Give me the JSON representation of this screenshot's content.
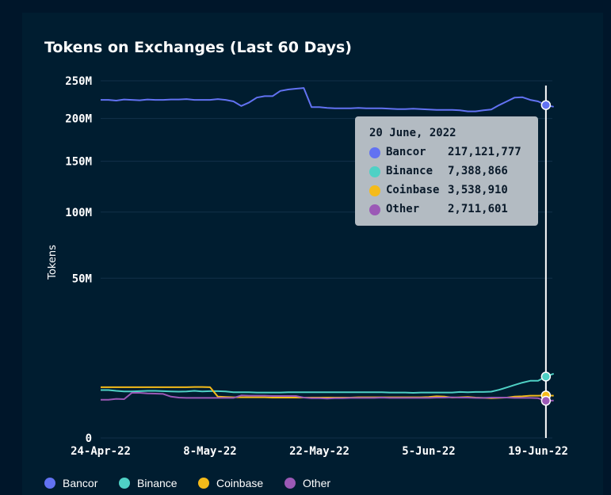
{
  "title": "Tokens on Exchanges (Last 60 Days)",
  "colors": {
    "Bancor": "#6272f2",
    "Binance": "#4fd1c5",
    "Coinbase": "#f4bb1a",
    "Other": "#9b59b6"
  },
  "tooltip": {
    "date": "20 June, 2022",
    "rows": [
      {
        "name": "Bancor",
        "value": "217,121,777"
      },
      {
        "name": "Binance",
        "value": "7,388,866"
      },
      {
        "name": "Coinbase",
        "value": "3,538,910"
      },
      {
        "name": "Other",
        "value": "2,711,601"
      }
    ]
  },
  "legend": [
    "Bancor",
    "Binance",
    "Coinbase",
    "Other"
  ],
  "chart_data": {
    "type": "line",
    "title": "Tokens on Exchanges (Last 60 Days)",
    "ylabel": "Tokens",
    "xlabel": "",
    "y_scale": "sqrt",
    "ylim": [
      0,
      250000000
    ],
    "y_ticks": [
      {
        "value": 0,
        "label": "0"
      },
      {
        "value": 50000000,
        "label": "50M"
      },
      {
        "value": 100000000,
        "label": "100M"
      },
      {
        "value": 150000000,
        "label": "150M"
      },
      {
        "value": 200000000,
        "label": "200M"
      },
      {
        "value": 250000000,
        "label": "250M"
      }
    ],
    "x_ticks": [
      {
        "date": "2022-04-24",
        "label": "24-Apr-22"
      },
      {
        "date": "2022-05-08",
        "label": "8-May-22"
      },
      {
        "date": "2022-05-22",
        "label": "22-May-22"
      },
      {
        "date": "2022-06-05",
        "label": "5-Jun-22"
      },
      {
        "date": "2022-06-19",
        "label": "19-Jun-22"
      }
    ],
    "x_range": [
      "2022-04-24",
      "2022-06-20"
    ],
    "highlight_date": "2022-06-20",
    "grid": true,
    "legend_position": "bottom",
    "series": [
      {
        "name": "Bancor",
        "points": [
          [
            "2022-04-24",
            224000000
          ],
          [
            "2022-04-25",
            224000000
          ],
          [
            "2022-04-26",
            223000000
          ],
          [
            "2022-04-27",
            224500000
          ],
          [
            "2022-04-28",
            224000000
          ],
          [
            "2022-04-29",
            223500000
          ],
          [
            "2022-04-30",
            224500000
          ],
          [
            "2022-05-01",
            224000000
          ],
          [
            "2022-05-02",
            224000000
          ],
          [
            "2022-05-03",
            224500000
          ],
          [
            "2022-05-04",
            224500000
          ],
          [
            "2022-05-05",
            225000000
          ],
          [
            "2022-05-06",
            224000000
          ],
          [
            "2022-05-07",
            224000000
          ],
          [
            "2022-05-08",
            224000000
          ],
          [
            "2022-05-09",
            225000000
          ],
          [
            "2022-05-10",
            224000000
          ],
          [
            "2022-05-11",
            222000000
          ],
          [
            "2022-05-12",
            216000000
          ],
          [
            "2022-05-13",
            220500000
          ],
          [
            "2022-05-14",
            227000000
          ],
          [
            "2022-05-15",
            229000000
          ],
          [
            "2022-05-16",
            229000000
          ],
          [
            "2022-05-17",
            236000000
          ],
          [
            "2022-05-18",
            238000000
          ],
          [
            "2022-05-19",
            239000000
          ],
          [
            "2022-05-20",
            240000000
          ],
          [
            "2022-05-21",
            214500000
          ],
          [
            "2022-05-22",
            214500000
          ],
          [
            "2022-05-23",
            213500000
          ],
          [
            "2022-05-24",
            213000000
          ],
          [
            "2022-05-25",
            213000000
          ],
          [
            "2022-05-26",
            213000000
          ],
          [
            "2022-05-27",
            213500000
          ],
          [
            "2022-05-28",
            213000000
          ],
          [
            "2022-05-29",
            213000000
          ],
          [
            "2022-05-30",
            213000000
          ],
          [
            "2022-05-31",
            212500000
          ],
          [
            "2022-06-01",
            212000000
          ],
          [
            "2022-06-02",
            212000000
          ],
          [
            "2022-06-03",
            212500000
          ],
          [
            "2022-06-04",
            212000000
          ],
          [
            "2022-06-05",
            211500000
          ],
          [
            "2022-06-06",
            211000000
          ],
          [
            "2022-06-07",
            211000000
          ],
          [
            "2022-06-08",
            211000000
          ],
          [
            "2022-06-09",
            210500000
          ],
          [
            "2022-06-10",
            209000000
          ],
          [
            "2022-06-11",
            209000000
          ],
          [
            "2022-06-12",
            210500000
          ],
          [
            "2022-06-13",
            211500000
          ],
          [
            "2022-06-14",
            217000000
          ],
          [
            "2022-06-15",
            222000000
          ],
          [
            "2022-06-16",
            227000000
          ],
          [
            "2022-06-17",
            227500000
          ],
          [
            "2022-06-18",
            224000000
          ],
          [
            "2022-06-19",
            222000000
          ],
          [
            "2022-06-20",
            217121777
          ],
          [
            "2022-06-21",
            215000000
          ]
        ]
      },
      {
        "name": "Binance",
        "points": [
          [
            "2022-04-24",
            4500000
          ],
          [
            "2022-04-25",
            4500000
          ],
          [
            "2022-04-26",
            4350000
          ],
          [
            "2022-04-27",
            4250000
          ],
          [
            "2022-04-28",
            4250000
          ],
          [
            "2022-04-29",
            4300000
          ],
          [
            "2022-04-30",
            4350000
          ],
          [
            "2022-05-01",
            4350000
          ],
          [
            "2022-05-02",
            4300000
          ],
          [
            "2022-05-03",
            4250000
          ],
          [
            "2022-05-04",
            4200000
          ],
          [
            "2022-05-05",
            4250000
          ],
          [
            "2022-05-06",
            4350000
          ],
          [
            "2022-05-07",
            4250000
          ],
          [
            "2022-05-08",
            4300000
          ],
          [
            "2022-05-09",
            4300000
          ],
          [
            "2022-05-10",
            4250000
          ],
          [
            "2022-05-11",
            4100000
          ],
          [
            "2022-05-12",
            4100000
          ],
          [
            "2022-05-13",
            4100000
          ],
          [
            "2022-05-14",
            4050000
          ],
          [
            "2022-05-15",
            4050000
          ],
          [
            "2022-05-16",
            4050000
          ],
          [
            "2022-05-17",
            4050000
          ],
          [
            "2022-05-18",
            4100000
          ],
          [
            "2022-05-19",
            4100000
          ],
          [
            "2022-05-20",
            4100000
          ],
          [
            "2022-05-21",
            4100000
          ],
          [
            "2022-05-22",
            4100000
          ],
          [
            "2022-05-23",
            4100000
          ],
          [
            "2022-05-24",
            4100000
          ],
          [
            "2022-05-25",
            4100000
          ],
          [
            "2022-05-26",
            4100000
          ],
          [
            "2022-05-27",
            4100000
          ],
          [
            "2022-05-28",
            4100000
          ],
          [
            "2022-05-29",
            4100000
          ],
          [
            "2022-05-30",
            4100000
          ],
          [
            "2022-05-31",
            4050000
          ],
          [
            "2022-06-01",
            4050000
          ],
          [
            "2022-06-02",
            4050000
          ],
          [
            "2022-06-03",
            4000000
          ],
          [
            "2022-06-04",
            4050000
          ],
          [
            "2022-06-05",
            4050000
          ],
          [
            "2022-06-06",
            4050000
          ],
          [
            "2022-06-07",
            4050000
          ],
          [
            "2022-06-08",
            4050000
          ],
          [
            "2022-06-09",
            4150000
          ],
          [
            "2022-06-10",
            4100000
          ],
          [
            "2022-06-11",
            4150000
          ],
          [
            "2022-06-12",
            4150000
          ],
          [
            "2022-06-13",
            4200000
          ],
          [
            "2022-06-14",
            4550000
          ],
          [
            "2022-06-15",
            5000000
          ],
          [
            "2022-06-16",
            5500000
          ],
          [
            "2022-06-17",
            6000000
          ],
          [
            "2022-06-18",
            6400000
          ],
          [
            "2022-06-19",
            6400000
          ],
          [
            "2022-06-20",
            7388866
          ],
          [
            "2022-06-21",
            8100000
          ]
        ]
      },
      {
        "name": "Coinbase",
        "points": [
          [
            "2022-04-24",
            5050000
          ],
          [
            "2022-04-25",
            5050000
          ],
          [
            "2022-04-26",
            5050000
          ],
          [
            "2022-04-27",
            5050000
          ],
          [
            "2022-04-28",
            5050000
          ],
          [
            "2022-04-29",
            5050000
          ],
          [
            "2022-04-30",
            5050000
          ],
          [
            "2022-05-01",
            5050000
          ],
          [
            "2022-05-02",
            5050000
          ],
          [
            "2022-05-03",
            5050000
          ],
          [
            "2022-05-04",
            5050000
          ],
          [
            "2022-05-05",
            5050000
          ],
          [
            "2022-05-06",
            5100000
          ],
          [
            "2022-05-07",
            5100000
          ],
          [
            "2022-05-08",
            5050000
          ],
          [
            "2022-05-09",
            3350000
          ],
          [
            "2022-05-10",
            3300000
          ],
          [
            "2022-05-11",
            3250000
          ],
          [
            "2022-05-12",
            3250000
          ],
          [
            "2022-05-13",
            3250000
          ],
          [
            "2022-05-14",
            3250000
          ],
          [
            "2022-05-15",
            3250000
          ],
          [
            "2022-05-16",
            3200000
          ],
          [
            "2022-05-17",
            3200000
          ],
          [
            "2022-05-18",
            3200000
          ],
          [
            "2022-05-19",
            3200000
          ],
          [
            "2022-05-20",
            3200000
          ],
          [
            "2022-05-21",
            3200000
          ],
          [
            "2022-05-22",
            3200000
          ],
          [
            "2022-05-23",
            3200000
          ],
          [
            "2022-05-24",
            3200000
          ],
          [
            "2022-05-25",
            3200000
          ],
          [
            "2022-05-26",
            3200000
          ],
          [
            "2022-05-27",
            3250000
          ],
          [
            "2022-05-28",
            3250000
          ],
          [
            "2022-05-29",
            3250000
          ],
          [
            "2022-05-30",
            3250000
          ],
          [
            "2022-05-31",
            3250000
          ],
          [
            "2022-06-01",
            3250000
          ],
          [
            "2022-06-02",
            3250000
          ],
          [
            "2022-06-03",
            3250000
          ],
          [
            "2022-06-04",
            3250000
          ],
          [
            "2022-06-05",
            3300000
          ],
          [
            "2022-06-06",
            3400000
          ],
          [
            "2022-06-07",
            3350000
          ],
          [
            "2022-06-08",
            3200000
          ],
          [
            "2022-06-09",
            3250000
          ],
          [
            "2022-06-10",
            3300000
          ],
          [
            "2022-06-11",
            3200000
          ],
          [
            "2022-06-12",
            3150000
          ],
          [
            "2022-06-13",
            3100000
          ],
          [
            "2022-06-14",
            3150000
          ],
          [
            "2022-06-15",
            3200000
          ],
          [
            "2022-06-16",
            3350000
          ],
          [
            "2022-06-17",
            3400000
          ],
          [
            "2022-06-18",
            3500000
          ],
          [
            "2022-06-19",
            3500000
          ],
          [
            "2022-06-20",
            3538910
          ],
          [
            "2022-06-21",
            3500000
          ]
        ]
      },
      {
        "name": "Other",
        "points": [
          [
            "2022-04-24",
            2850000
          ],
          [
            "2022-04-25",
            2850000
          ],
          [
            "2022-04-26",
            3000000
          ],
          [
            "2022-04-27",
            2950000
          ],
          [
            "2022-04-28",
            4000000
          ],
          [
            "2022-04-29",
            4000000
          ],
          [
            "2022-04-30",
            3900000
          ],
          [
            "2022-05-01",
            3850000
          ],
          [
            "2022-05-02",
            3800000
          ],
          [
            "2022-05-03",
            3350000
          ],
          [
            "2022-05-04",
            3200000
          ],
          [
            "2022-05-05",
            3150000
          ],
          [
            "2022-05-06",
            3150000
          ],
          [
            "2022-05-07",
            3150000
          ],
          [
            "2022-05-08",
            3150000
          ],
          [
            "2022-05-09",
            3150000
          ],
          [
            "2022-05-10",
            3150000
          ],
          [
            "2022-05-11",
            3150000
          ],
          [
            "2022-05-12",
            3550000
          ],
          [
            "2022-05-13",
            3500000
          ],
          [
            "2022-05-14",
            3500000
          ],
          [
            "2022-05-15",
            3500000
          ],
          [
            "2022-05-16",
            3450000
          ],
          [
            "2022-05-17",
            3450000
          ],
          [
            "2022-05-18",
            3450000
          ],
          [
            "2022-05-19",
            3450000
          ],
          [
            "2022-05-20",
            3200000
          ],
          [
            "2022-05-21",
            3100000
          ],
          [
            "2022-05-22",
            3100000
          ],
          [
            "2022-05-23",
            3050000
          ],
          [
            "2022-05-24",
            3100000
          ],
          [
            "2022-05-25",
            3100000
          ],
          [
            "2022-05-26",
            3150000
          ],
          [
            "2022-05-27",
            3150000
          ],
          [
            "2022-05-28",
            3150000
          ],
          [
            "2022-05-29",
            3150000
          ],
          [
            "2022-05-30",
            3200000
          ],
          [
            "2022-05-31",
            3150000
          ],
          [
            "2022-06-01",
            3150000
          ],
          [
            "2022-06-02",
            3150000
          ],
          [
            "2022-06-03",
            3150000
          ],
          [
            "2022-06-04",
            3150000
          ],
          [
            "2022-06-05",
            3150000
          ],
          [
            "2022-06-06",
            3200000
          ],
          [
            "2022-06-07",
            3200000
          ],
          [
            "2022-06-08",
            3250000
          ],
          [
            "2022-06-09",
            3200000
          ],
          [
            "2022-06-10",
            3200000
          ],
          [
            "2022-06-11",
            3150000
          ],
          [
            "2022-06-12",
            3150000
          ],
          [
            "2022-06-13",
            3200000
          ],
          [
            "2022-06-14",
            3200000
          ],
          [
            "2022-06-15",
            3200000
          ],
          [
            "2022-06-16",
            3150000
          ],
          [
            "2022-06-17",
            3150000
          ],
          [
            "2022-06-18",
            3150000
          ],
          [
            "2022-06-19",
            3100000
          ],
          [
            "2022-06-20",
            2711601
          ],
          [
            "2022-06-21",
            2750000
          ]
        ]
      }
    ]
  }
}
